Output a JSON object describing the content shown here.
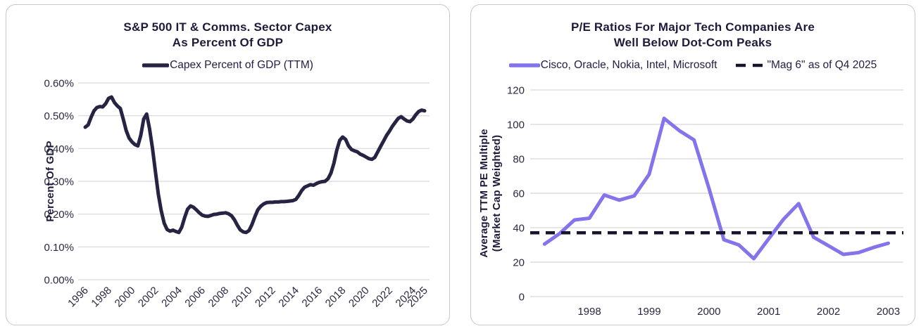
{
  "page": {
    "background": "#ffffff"
  },
  "colors": {
    "navy_text": "#1e1b3a",
    "navy_line": "#262343",
    "purple_line": "#8374eb",
    "dashed_line": "#16142e",
    "gridline": "#d8d8dc",
    "card_border": "#c7c7cd",
    "card_background": "#ffffff"
  },
  "left_chart": {
    "title_line1": "S&P 500 IT & Comms. Sector Capex",
    "title_line2": "As Percent Of GDP",
    "legend": [
      {
        "label": "Capex Percent of GDP (TTM)",
        "color": "#262343",
        "style": "solid"
      }
    ],
    "y_axis_title": "Percent Of GDP"
  },
  "right_chart": {
    "title_line1": "P/E Ratios For Major Tech Companies Are",
    "title_line2": "Well Below Dot-Com Peaks",
    "legend": [
      {
        "label": "Cisco, Oracle, Nokia, Intel, Microsoft",
        "color": "#8374eb",
        "style": "solid"
      },
      {
        "label": "\"Mag 6\" as of Q4 2025",
        "color": "#16142e",
        "style": "dashed"
      }
    ],
    "y_axis_title_line1": "Average TTM PE Multiple",
    "y_axis_title_line2": "(Market Cap Weighted)"
  },
  "chart_data": [
    {
      "type": "line",
      "title": "S&P 500 IT & Comms. Sector Capex As Percent Of GDP",
      "xlabel": "",
      "ylabel": "Percent Of GDP",
      "ylim": [
        0,
        0.6
      ],
      "grid": true,
      "legend_position": "top",
      "y_tick_values": [
        0,
        0.1,
        0.2,
        0.3,
        0.4,
        0.5,
        0.6
      ],
      "y_tick_labels": [
        "0.00%",
        "0.10%",
        "0.20%",
        "0.30%",
        "0.40%",
        "0.50%",
        "0.60%"
      ],
      "x_tick_values": [
        1996,
        1998,
        2000,
        2002,
        2004,
        2006,
        2008,
        2010,
        2012,
        2014,
        2016,
        2018,
        2020,
        2022,
        2024,
        2025
      ],
      "x_tick_labels": [
        "1996",
        "1998",
        "2000",
        "2002",
        "2004",
        "2006",
        "2008",
        "2010",
        "2012",
        "2014",
        "2016",
        "2018",
        "2020",
        "2022",
        "2024",
        "2025"
      ],
      "series": [
        {
          "name": "Capex Percent of GDP (TTM)",
          "color": "#262343",
          "style": "solid",
          "unit": "percent of GDP",
          "x_start": 1996.0,
          "x_step": 0.25,
          "values": [
            0.465,
            0.472,
            0.495,
            0.515,
            0.525,
            0.528,
            0.527,
            0.537,
            0.553,
            0.557,
            0.54,
            0.53,
            0.522,
            0.49,
            0.455,
            0.432,
            0.42,
            0.412,
            0.408,
            0.44,
            0.49,
            0.505,
            0.46,
            0.4,
            0.33,
            0.26,
            0.21,
            0.172,
            0.153,
            0.148,
            0.151,
            0.147,
            0.144,
            0.16,
            0.19,
            0.215,
            0.225,
            0.221,
            0.213,
            0.204,
            0.197,
            0.194,
            0.193,
            0.196,
            0.199,
            0.2,
            0.202,
            0.203,
            0.204,
            0.201,
            0.195,
            0.183,
            0.166,
            0.152,
            0.146,
            0.144,
            0.15,
            0.168,
            0.192,
            0.213,
            0.224,
            0.231,
            0.235,
            0.236,
            0.236,
            0.237,
            0.237,
            0.238,
            0.238,
            0.239,
            0.24,
            0.241,
            0.245,
            0.257,
            0.272,
            0.282,
            0.286,
            0.29,
            0.288,
            0.293,
            0.297,
            0.299,
            0.3,
            0.308,
            0.325,
            0.355,
            0.395,
            0.425,
            0.435,
            0.428,
            0.408,
            0.397,
            0.393,
            0.39,
            0.383,
            0.379,
            0.374,
            0.369,
            0.367,
            0.373,
            0.39,
            0.407,
            0.423,
            0.44,
            0.453,
            0.468,
            0.48,
            0.492,
            0.497,
            0.49,
            0.484,
            0.482,
            0.49,
            0.503,
            0.513,
            0.517,
            0.515
          ]
        }
      ]
    },
    {
      "type": "line",
      "title": "P/E Ratios For Major Tech Companies Are Well Below Dot-Com Peaks",
      "xlabel": "",
      "ylabel": "Average TTM PE Multiple (Market Cap Weighted)",
      "ylim": [
        0,
        120
      ],
      "grid": true,
      "legend_position": "top",
      "y_tick_values": [
        0,
        20,
        40,
        60,
        80,
        100,
        120
      ],
      "y_tick_labels": [
        "0",
        "20",
        "40",
        "60",
        "80",
        "100",
        "120"
      ],
      "x_tick_values": [
        1998,
        1999,
        2000,
        2001,
        2002,
        2003
      ],
      "x_tick_labels": [
        "1998",
        "1999",
        "2000",
        "2001",
        "2002",
        "2003"
      ],
      "series": [
        {
          "name": "Cisco, Oracle, Nokia, Intel, Microsoft",
          "color": "#8374eb",
          "style": "solid",
          "unit": "TTM P/E multiple",
          "x_start": 1997.25,
          "x_step": 0.25,
          "values": [
            30.5,
            36.5,
            44.5,
            45.5,
            59,
            56,
            58.5,
            71,
            103.5,
            96.5,
            91,
            63,
            33,
            30,
            22,
            33.5,
            45,
            54,
            34.5,
            29.5,
            24.5,
            25.5,
            28.5,
            31
          ]
        },
        {
          "name": "\"Mag 6\" as of Q4 2025",
          "color": "#16142e",
          "style": "dashed-horizontal",
          "constant_value": 37
        }
      ]
    }
  ]
}
